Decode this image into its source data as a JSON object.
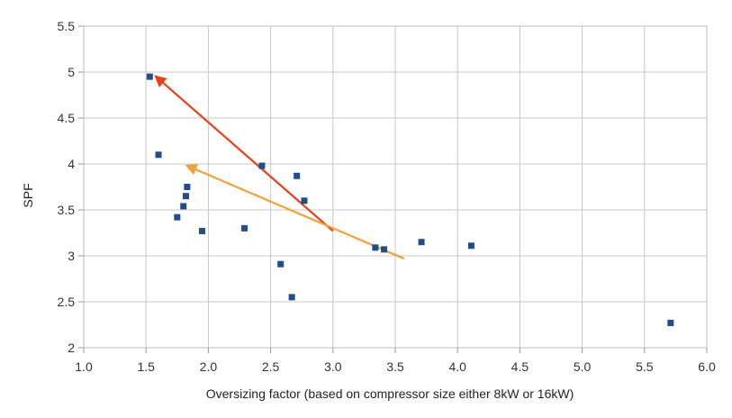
{
  "chart_data": {
    "type": "scatter",
    "title": "",
    "xlabel": "Oversizing factor (based on compressor size either 8kW or 16kW)",
    "ylabel": "SPF",
    "xlim": [
      1.0,
      6.0
    ],
    "ylim": [
      2,
      5.5
    ],
    "x_ticks": [
      "1.0",
      "1.5",
      "2.0",
      "2.5",
      "3.0",
      "3.5",
      "4.0",
      "4.5",
      "5.0",
      "5.5",
      "6.0"
    ],
    "y_ticks": [
      "2",
      "2.5",
      "3",
      "3.5",
      "4",
      "4.5",
      "5",
      "5.5"
    ],
    "grid": true,
    "marker": "square",
    "marker_color": "#1f4e8c",
    "points": [
      {
        "x": 1.53,
        "y": 4.95
      },
      {
        "x": 1.6,
        "y": 4.1
      },
      {
        "x": 1.75,
        "y": 3.42
      },
      {
        "x": 1.8,
        "y": 3.54
      },
      {
        "x": 1.82,
        "y": 3.65
      },
      {
        "x": 1.83,
        "y": 3.75
      },
      {
        "x": 1.95,
        "y": 3.27
      },
      {
        "x": 2.29,
        "y": 3.3
      },
      {
        "x": 2.43,
        "y": 3.98
      },
      {
        "x": 2.58,
        "y": 2.91
      },
      {
        "x": 2.67,
        "y": 2.55
      },
      {
        "x": 2.71,
        "y": 3.87
      },
      {
        "x": 2.77,
        "y": 3.6
      },
      {
        "x": 3.34,
        "y": 3.09
      },
      {
        "x": 3.41,
        "y": 3.07
      },
      {
        "x": 3.71,
        "y": 3.15
      },
      {
        "x": 4.11,
        "y": 3.11
      },
      {
        "x": 5.71,
        "y": 2.27
      }
    ],
    "arrows": [
      {
        "color": "#e8401c",
        "from": {
          "x": 3.0,
          "y": 3.27
        },
        "to": {
          "x": 1.58,
          "y": 4.95
        }
      },
      {
        "color": "#f0a13a",
        "from": {
          "x": 3.57,
          "y": 2.97
        },
        "to": {
          "x": 1.83,
          "y": 3.98
        }
      }
    ]
  }
}
